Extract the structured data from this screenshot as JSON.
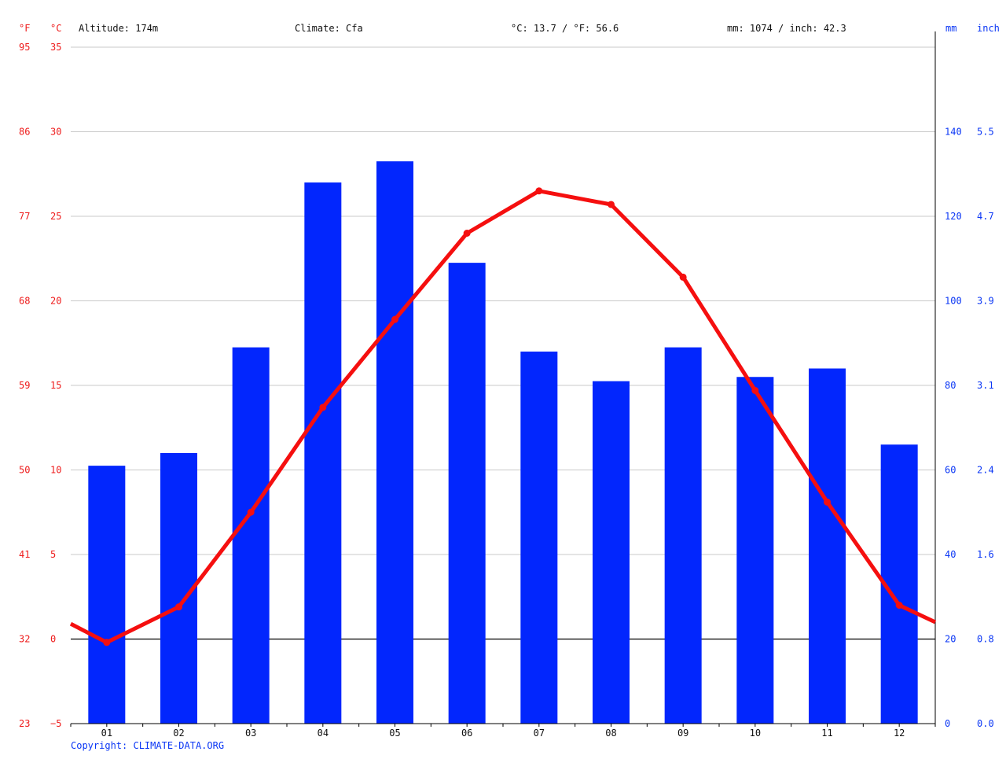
{
  "header": {
    "f_unit": "°F",
    "c_unit": "°C",
    "altitude": "Altitude: 174m",
    "climate": "Climate: Cfa",
    "temperature": "°C: 13.7 / °F: 56.6",
    "precipitation": "mm: 1074 / inch: 42.3",
    "mm_unit": "mm",
    "inch_unit": "inch"
  },
  "copyright": "Copyright: CLIMATE-DATA.ORG",
  "colors": {
    "temperature": "#f50f0f",
    "precipitation": "#0226fd",
    "red_text": "#ee1b1b",
    "blue_text": "#0a36f5"
  },
  "chart_data": {
    "type": "bar",
    "categories": [
      "01",
      "02",
      "03",
      "04",
      "05",
      "06",
      "07",
      "08",
      "09",
      "10",
      "11",
      "12"
    ],
    "series": [
      {
        "type": "bar",
        "axis": "right",
        "values": [
          61,
          64,
          89,
          128,
          133,
          109,
          88,
          81,
          89,
          82,
          84,
          66
        ]
      },
      {
        "type": "line",
        "axis": "left",
        "values": [
          -0.2,
          1.9,
          7.5,
          13.7,
          18.9,
          24.0,
          26.5,
          25.7,
          21.4,
          14.7,
          8.1,
          2.0
        ]
      }
    ],
    "line_start_value": 0.9,
    "line_end_value": 1.0,
    "left_axis": {
      "ylim": [
        -5,
        35
      ],
      "c_ticks": [
        "35",
        "30",
        "25",
        "20",
        "15",
        "10",
        "5",
        "0",
        "−5"
      ],
      "f_ticks": [
        "95",
        "86",
        "77",
        "68",
        "59",
        "50",
        "41",
        "32",
        "23"
      ]
    },
    "right_axis": {
      "ylim": [
        0,
        160
      ],
      "mm_ticks": [
        "140",
        "120",
        "100",
        "80",
        "60",
        "40",
        "20",
        "0"
      ],
      "inch_ticks": [
        "5.5",
        "4.7",
        "3.9",
        "3.1",
        "2.4",
        "1.6",
        "0.8",
        "0.0"
      ]
    },
    "grid": true
  }
}
